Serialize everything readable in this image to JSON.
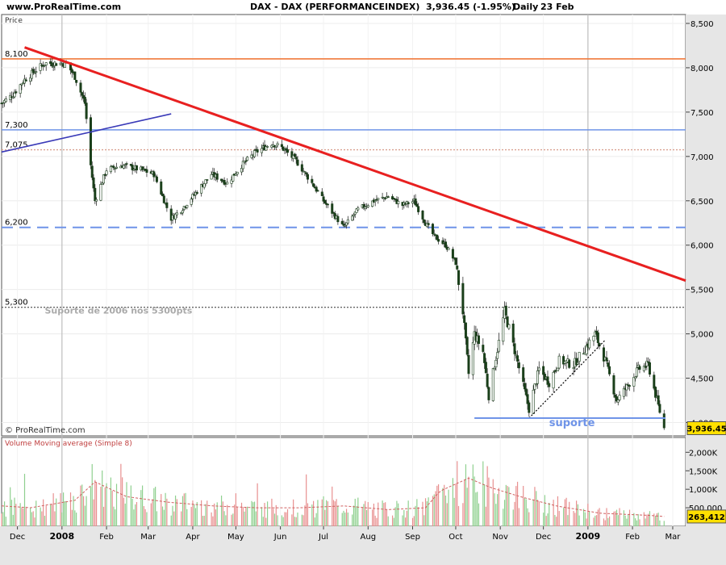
{
  "header": {
    "site": "www.ProRealTime.com",
    "title": "DAX - DAX (PERFORMANCEINDEX)",
    "last": "3,936.45 (-1.95%)",
    "period": "Daily",
    "date": "23 Feb"
  },
  "price_panel_label": "Price",
  "copyright": "© ProRealTime.com",
  "chart_data": [
    {
      "type": "candlestick",
      "title": "DAX - DAX (PERFORMANCEINDEX)",
      "ylabel": "Price",
      "ylim": [
        3850,
        8600
      ],
      "y_ticks": [
        "8,500",
        "8,000",
        "7,500",
        "7,000",
        "6,500",
        "6,000",
        "5,500",
        "5,000",
        "4,500",
        "4,000"
      ],
      "y_tick_values": [
        8500,
        8000,
        7500,
        7000,
        6500,
        6000,
        5500,
        5000,
        4500,
        4000
      ],
      "x_tick_labels": [
        "Dec",
        "2008",
        "Feb",
        "Mar",
        "Apr",
        "May",
        "Jun",
        "Jul",
        "Aug",
        "Sep",
        "Oct",
        "Nov",
        "Dec",
        "2009",
        "Feb",
        "Mar"
      ],
      "x_tick_dates": [
        "2007-12-01",
        "2008-01-01",
        "2008-02-01",
        "2008-03-01",
        "2008-04-01",
        "2008-05-01",
        "2008-06-01",
        "2008-07-01",
        "2008-08-01",
        "2008-09-01",
        "2008-10-01",
        "2008-11-01",
        "2008-12-01",
        "2009-01-01",
        "2009-02-01",
        "2009-03-01"
      ],
      "xlim": [
        "2007-11-20",
        "2009-03-10"
      ],
      "last_value": "3,936.45",
      "levels": [
        {
          "label": "8,100",
          "value": 8100,
          "color": "#f07a3c",
          "style": "solid"
        },
        {
          "label": "7,300",
          "value": 7300,
          "color": "#6f94e8",
          "style": "solid"
        },
        {
          "label": "7,075",
          "value": 7075,
          "color": "#d9a090",
          "style": "dotted"
        },
        {
          "label": "6,200",
          "value": 6200,
          "color": "#6f94e8",
          "style": "dashed"
        },
        {
          "label": "5,300",
          "value": 5300,
          "color": "#666666",
          "style": "dotted"
        }
      ],
      "trendlines": [
        {
          "name": "resistance",
          "color": "#e82020",
          "from": [
            "2007-12-06",
            8230
          ],
          "to": [
            "2009-03-10",
            5600
          ]
        },
        {
          "name": "early-support",
          "color": "#3a3ab8",
          "from": [
            "2007-11-20",
            7050
          ],
          "to": [
            "2008-03-17",
            7480
          ]
        },
        {
          "name": "rising-support",
          "color": "#000000",
          "style": "dotted",
          "from": [
            "2008-11-21",
            4050
          ],
          "to": [
            "2009-01-13",
            4930
          ]
        },
        {
          "name": "suporte",
          "color": "#6f94e8",
          "from": [
            "2008-10-14",
            4050
          ],
          "to": [
            "2009-02-24",
            4050
          ]
        }
      ],
      "annotations": [
        {
          "text": "Suporte de 2006 nos 5300pts",
          "x": "2007-12-20",
          "y": 5230,
          "color": "#aaaaaa"
        },
        {
          "text": "suporte",
          "x": "2008-12-05",
          "y": 3960,
          "color": "#6f94e8"
        }
      ],
      "series_points": [
        [
          "2007-11-20",
          7600
        ],
        [
          "2007-11-28",
          7700
        ],
        [
          "2007-12-05",
          7850
        ],
        [
          "2007-12-12",
          7950
        ],
        [
          "2007-12-20",
          8050
        ],
        [
          "2007-12-28",
          8050
        ],
        [
          "2008-01-04",
          8050
        ],
        [
          "2008-01-10",
          7900
        ],
        [
          "2008-01-17",
          7600
        ],
        [
          "2008-01-21",
          6900
        ],
        [
          "2008-01-24",
          6500
        ],
        [
          "2008-02-01",
          6850
        ],
        [
          "2008-02-12",
          6900
        ],
        [
          "2008-02-25",
          6850
        ],
        [
          "2008-03-05",
          6800
        ],
        [
          "2008-03-17",
          6300
        ],
        [
          "2008-03-24",
          6400
        ],
        [
          "2008-04-01",
          6550
        ],
        [
          "2008-04-14",
          6800
        ],
        [
          "2008-04-25",
          6700
        ],
        [
          "2008-05-05",
          6900
        ],
        [
          "2008-05-15",
          7050
        ],
        [
          "2008-05-26",
          7150
        ],
        [
          "2008-06-02",
          7100
        ],
        [
          "2008-06-12",
          6950
        ],
        [
          "2008-06-23",
          6700
        ],
        [
          "2008-07-01",
          6500
        ],
        [
          "2008-07-15",
          6200
        ],
        [
          "2008-07-25",
          6400
        ],
        [
          "2008-08-05",
          6500
        ],
        [
          "2008-08-15",
          6550
        ],
        [
          "2008-08-25",
          6450
        ],
        [
          "2008-09-02",
          6500
        ],
        [
          "2008-09-10",
          6250
        ],
        [
          "2008-09-16",
          6100
        ],
        [
          "2008-09-24",
          6000
        ],
        [
          "2008-10-01",
          5800
        ],
        [
          "2008-10-06",
          5250
        ],
        [
          "2008-10-10",
          4550
        ],
        [
          "2008-10-14",
          5000
        ],
        [
          "2008-10-20",
          4800
        ],
        [
          "2008-10-24",
          4300
        ],
        [
          "2008-10-28",
          4650
        ],
        [
          "2008-11-04",
          5250
        ],
        [
          "2008-11-12",
          4750
        ],
        [
          "2008-11-21",
          4150
        ],
        [
          "2008-11-28",
          4600
        ],
        [
          "2008-12-05",
          4450
        ],
        [
          "2008-12-12",
          4700
        ],
        [
          "2008-12-22",
          4650
        ],
        [
          "2009-01-06",
          5000
        ],
        [
          "2009-01-13",
          4700
        ],
        [
          "2009-01-21",
          4250
        ],
        [
          "2009-01-28",
          4400
        ],
        [
          "2009-02-05",
          4600
        ],
        [
          "2009-02-12",
          4650
        ],
        [
          "2009-02-18",
          4250
        ],
        [
          "2009-02-23",
          3936
        ]
      ]
    },
    {
      "type": "bar",
      "title": "Volume Moving average (Simple 8)",
      "ylim": [
        0,
        2400000
      ],
      "y_ticks": [
        "2,000K",
        "1,500K",
        "1,000K",
        "500,000"
      ],
      "y_tick_values": [
        2000000,
        1500000,
        1000000,
        500000
      ],
      "last_value": "263,412",
      "volume_points": [
        [
          "2007-11-20",
          550000
        ],
        [
          "2007-12-10",
          500000
        ],
        [
          "2008-01-10",
          700000
        ],
        [
          "2008-01-24",
          1200000
        ],
        [
          "2008-02-15",
          800000
        ],
        [
          "2008-03-15",
          650000
        ],
        [
          "2008-04-15",
          550000
        ],
        [
          "2008-05-15",
          500000
        ],
        [
          "2008-06-15",
          500000
        ],
        [
          "2008-07-15",
          550000
        ],
        [
          "2008-08-15",
          450000
        ],
        [
          "2008-09-10",
          500000
        ],
        [
          "2008-09-20",
          950000
        ],
        [
          "2008-10-10",
          1300000
        ],
        [
          "2008-10-25",
          1050000
        ],
        [
          "2008-11-15",
          800000
        ],
        [
          "2008-12-10",
          550000
        ],
        [
          "2009-01-10",
          350000
        ],
        [
          "2009-02-10",
          300000
        ],
        [
          "2009-02-23",
          263412
        ]
      ]
    }
  ]
}
